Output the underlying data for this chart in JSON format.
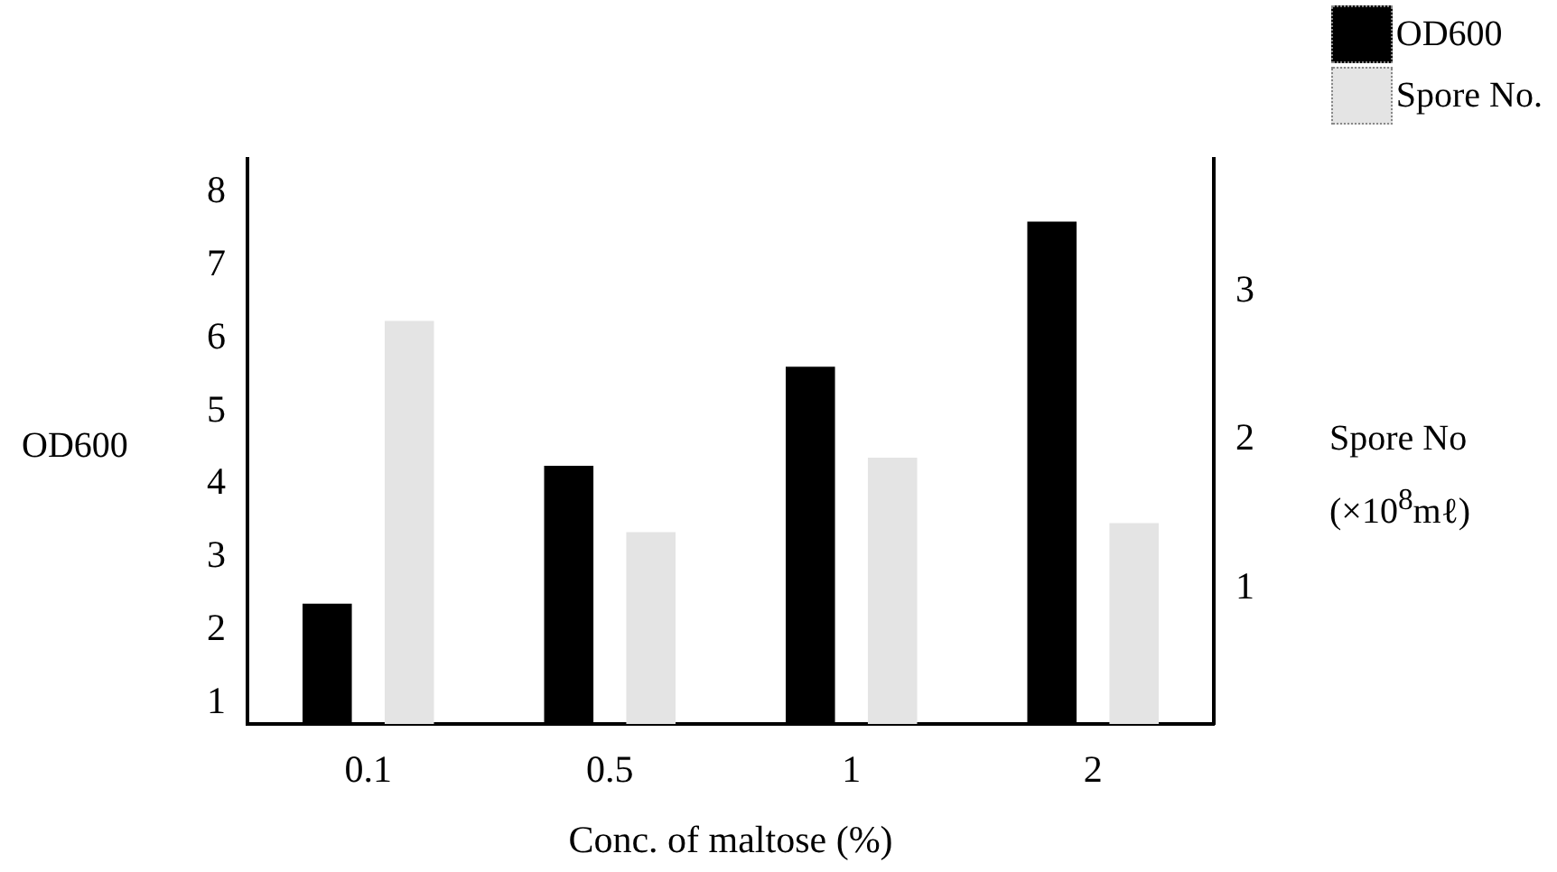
{
  "chart_data": {
    "type": "bar",
    "xlabel": "Conc. of maltose (%)",
    "ylabel": "OD600",
    "y2label": "Spore No\n(×10$^{8}$mℓ)",
    "categories": [
      "0.1",
      "0.5",
      "1",
      "2"
    ],
    "series": [
      {
        "name": "OD600",
        "color": "#000000",
        "values": [
          2.36,
          4.25,
          5.61,
          7.6
        ]
      },
      {
        "name": "Spore No.",
        "color": "#e4e4e4",
        "values": [
          2.8,
          1.38,
          1.88,
          1.44
        ],
        "axis": "y2"
      }
    ],
    "ylim": [
      0.71,
      8.46
    ],
    "yticks": [
      1,
      2,
      3,
      4,
      5,
      6,
      7,
      8
    ],
    "y2lim": [
      0.09,
      3.89
    ],
    "y2ticks": [
      1,
      2,
      3
    ],
    "grid": false,
    "legend": "top right"
  }
}
